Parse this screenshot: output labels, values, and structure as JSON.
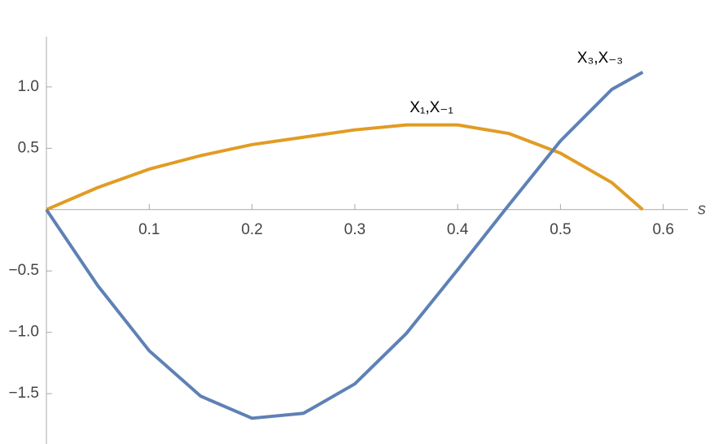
{
  "chart_data": {
    "type": "line",
    "x_label": "s",
    "x": [
      0,
      0.05,
      0.1,
      0.15,
      0.2,
      0.25,
      0.3,
      0.35,
      0.4,
      0.45,
      0.5,
      0.55,
      0.58
    ],
    "series": [
      {
        "name": "X₁,X₋₁",
        "color": "#e19c24",
        "values": [
          0,
          0.18,
          0.33,
          0.44,
          0.53,
          0.59,
          0.65,
          0.69,
          0.69,
          0.62,
          0.46,
          0.22,
          0
        ]
      },
      {
        "name": "X₃,X₋₃",
        "color": "#5e81b5",
        "values": [
          0,
          -0.62,
          -1.15,
          -1.52,
          -1.7,
          -1.66,
          -1.42,
          -1.01,
          -0.49,
          0.04,
          0.56,
          0.98,
          1.12
        ]
      }
    ],
    "xlim": [
      0,
      0.624
    ],
    "ylim": [
      -1.91,
      1.41
    ],
    "xticks": [
      0.1,
      0.2,
      0.3,
      0.4,
      0.5,
      0.6
    ],
    "yticks": [
      {
        "value": 1,
        "label": "1.0"
      },
      0.5,
      {
        "value": -0.5,
        "label": "−0.5"
      },
      {
        "value": -1,
        "label": "−1.0"
      },
      {
        "value": -1.5,
        "label": "−1.5"
      }
    ]
  }
}
